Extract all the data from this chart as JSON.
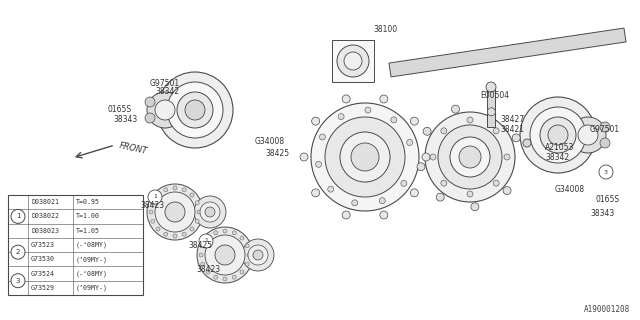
{
  "bg_color": "#ffffff",
  "line_color": "#4a4a4a",
  "watermark": "A190001208",
  "table_rows": [
    [
      "",
      "D038021",
      "T=0.95"
    ],
    [
      "1",
      "D038022",
      "T=1.00"
    ],
    [
      "",
      "D038023",
      "T=1.05"
    ],
    [
      "2",
      "G73523",
      "(-‘08MY)"
    ],
    [
      "",
      "G73530",
      "(’09MY-)"
    ],
    [
      "3",
      "G73524",
      "(-‘08MY)"
    ],
    [
      "",
      "G73529",
      "(’09MY-)"
    ]
  ]
}
